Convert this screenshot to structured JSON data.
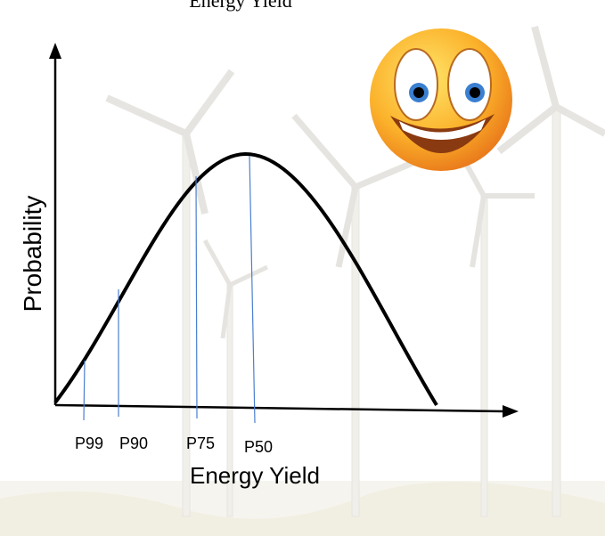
{
  "title": "Energy  Yield",
  "y_axis_label": "Probability",
  "x_axis_label": "Energy  Yield",
  "markers": [
    "P99",
    "P90",
    "P75",
    "P50"
  ]
}
